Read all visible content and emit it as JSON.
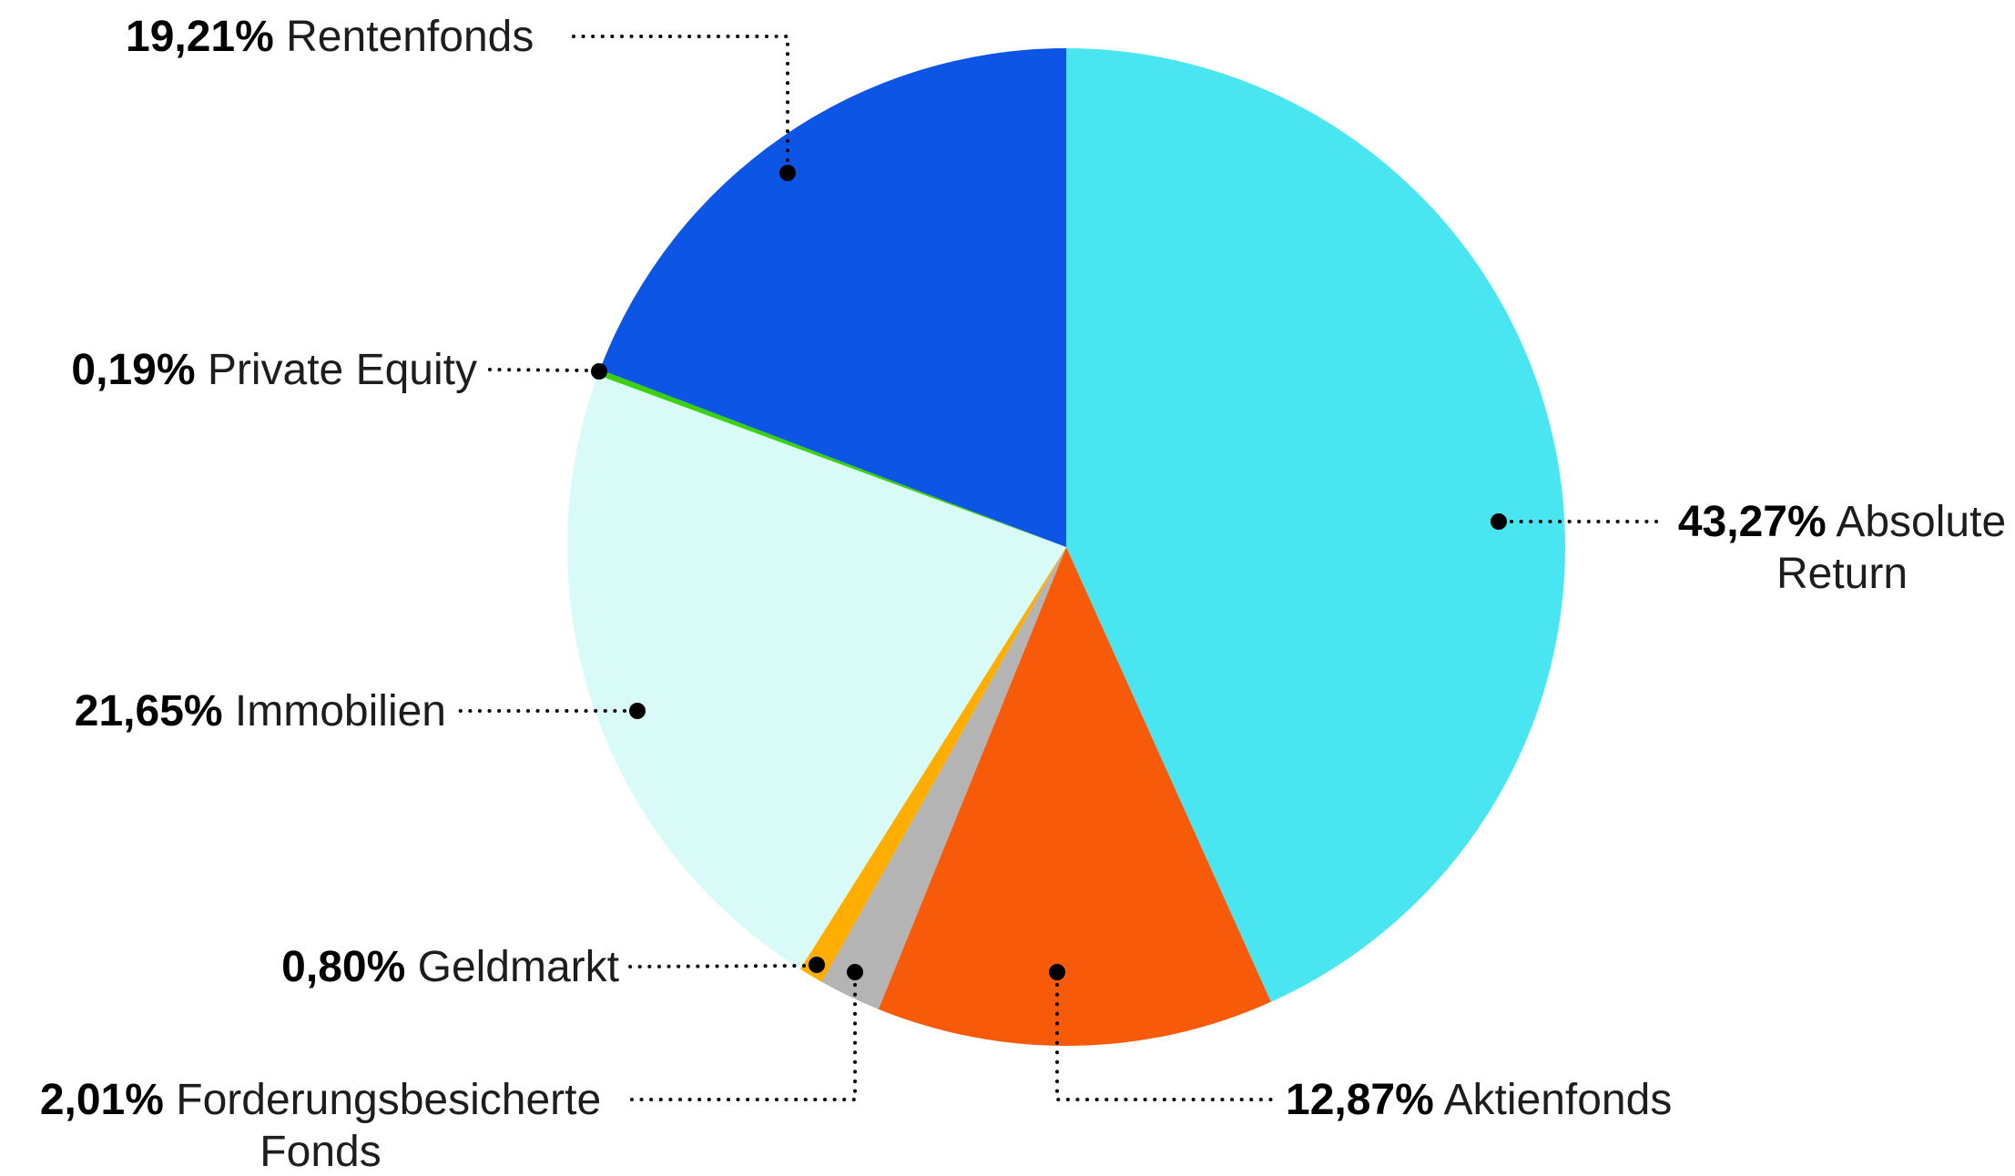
{
  "page": {
    "background": "#ffffff",
    "text_color": "#000000",
    "leader_line_style": "dotted",
    "leader_line_color": "#000000"
  },
  "chart_data": {
    "type": "pie",
    "title": "",
    "unit": "%",
    "decimal_separator": ",",
    "start_angle_deg": 0,
    "direction": "clockwise",
    "legend": "none (direct labels with dotted leader lines and black anchor dots)",
    "slices": [
      {
        "label": "Absolute Return",
        "value": 43.27,
        "display_value": "43,27%",
        "color": "#49E6F2"
      },
      {
        "label": "Aktienfonds",
        "value": 12.87,
        "display_value": "12,87%",
        "color": "#F75B09"
      },
      {
        "label": "Forderungsbesicherte Fonds",
        "value": 2.01,
        "display_value": "2,01%",
        "color": "#B4B4B4"
      },
      {
        "label": "Geldmarkt",
        "value": 0.8,
        "display_value": "0,80%",
        "color": "#FFAE00"
      },
      {
        "label": "Immobilien",
        "value": 21.65,
        "display_value": "21,65%",
        "color": "#D9FBF8"
      },
      {
        "label": "Private Equity",
        "value": 0.19,
        "display_value": "0,19%",
        "color": "#3BD10C"
      },
      {
        "label": "Rentenfonds",
        "value": 19.21,
        "display_value": "19,21%",
        "color": "#0D55E4"
      }
    ],
    "total": 100.0
  }
}
